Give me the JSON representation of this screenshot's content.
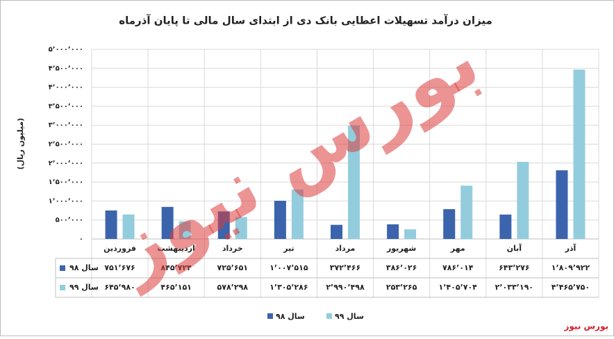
{
  "chart_data": {
    "type": "bar",
    "title": "میزان درآمد تسهیلات اعطایی بانک دی از ابتدای سال مالی تا پایان آذرماه",
    "y_label": "(میلیون ریال)",
    "categories": [
      "فروردین",
      "اردیبهشت",
      "خرداد",
      "تیر",
      "مرداد",
      "شهریور",
      "مهر",
      "آبان",
      "آذر"
    ],
    "series": [
      {
        "name": "سال ۹۸",
        "color": "#3b64ad",
        "values": [
          751676,
          845724,
          725651,
          1007515,
          372466,
          386026,
          786014,
          643276,
          1809922
        ],
        "value_labels": [
          "۷۵۱٬۶۷۶",
          "۸۴۵٬۷۲۴",
          "۷۲۵٬۶۵۱",
          "۱٬۰۰۷٬۵۱۵",
          "۳۷۲٬۴۶۶",
          "۳۸۶٬۰۲۶",
          "۷۸۶٬۰۱۴",
          "۶۴۳٬۲۷۶",
          "۱٬۸۰۹٬۹۲۲"
        ]
      },
      {
        "name": "سال ۹۹",
        "color": "#93cddd",
        "values": [
          645980,
          465151,
          578298,
          1305286,
          2990498,
          253265,
          1405704,
          2033190,
          4465750
        ],
        "value_labels": [
          "۶۴۵٬۹۸۰",
          "۴۶۵٬۱۵۱",
          "۵۷۸٬۲۹۸",
          "۱٬۳۰۵٬۲۸۶",
          "۲٬۹۹۰٬۴۹۸",
          "۲۵۳٬۲۶۵",
          "۱٬۴۰۵٬۷۰۴",
          "۲٬۰۳۳٬۱۹۰",
          "۴٬۴۶۵٬۷۵۰"
        ]
      }
    ],
    "ylim": [
      0,
      5000000
    ],
    "yticks": [
      {
        "value": 0,
        "label": "۰"
      },
      {
        "value": 500000,
        "label": "۵۰۰٬۰۰۰"
      },
      {
        "value": 1000000,
        "label": "۱٬۰۰۰٬۰۰۰"
      },
      {
        "value": 1500000,
        "label": "۱٬۵۰۰٬۰۰۰"
      },
      {
        "value": 2000000,
        "label": "۲٬۰۰۰٬۰۰۰"
      },
      {
        "value": 2500000,
        "label": "۲٬۵۰۰٬۰۰۰"
      },
      {
        "value": 3000000,
        "label": "۳٬۰۰۰٬۰۰۰"
      },
      {
        "value": 3500000,
        "label": "۳٬۵۰۰٬۰۰۰"
      },
      {
        "value": 4000000,
        "label": "۴٬۰۰۰٬۰۰۰"
      },
      {
        "value": 4500000,
        "label": "۴٬۵۰۰٬۰۰۰"
      },
      {
        "value": 5000000,
        "label": "۵٬۰۰۰٬۰۰۰"
      }
    ],
    "grid": true,
    "watermark": "بورس نیوز",
    "source": "بورس نیوز"
  }
}
